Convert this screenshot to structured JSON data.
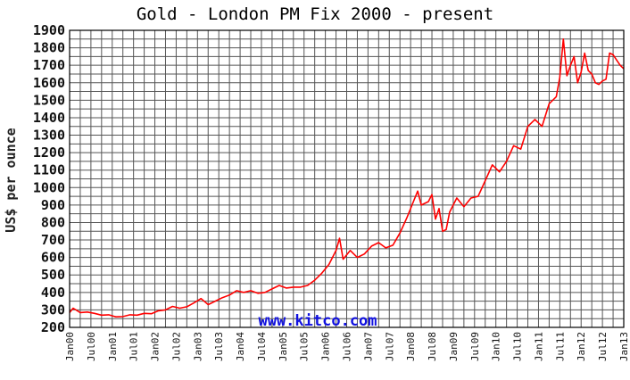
{
  "chart_data": {
    "type": "line",
    "title": "Gold - London PM Fix 2000 - present",
    "ylabel": "US$ per ounce",
    "xlabel": "",
    "watermark": "www.kitco.com",
    "ylim": [
      200,
      1900
    ],
    "yticks": [
      200,
      300,
      400,
      500,
      600,
      700,
      800,
      900,
      1000,
      1100,
      1200,
      1300,
      1400,
      1500,
      1600,
      1700,
      1800,
      1900
    ],
    "xlim": [
      "2000-01",
      "2013-01"
    ],
    "xticks": [
      "Jan00",
      "Jul00",
      "Jan01",
      "Jul01",
      "Jan02",
      "Jul02",
      "Jan03",
      "Jul03",
      "Jan04",
      "Jul04",
      "Jan05",
      "Jul05",
      "Jan06",
      "Jul06",
      "Jan07",
      "Jul07",
      "Jan08",
      "Jul08",
      "Jan09",
      "Jul09",
      "Jan10",
      "Jul10",
      "Jan11",
      "Jul11",
      "Jan12",
      "Jul12",
      "Jan13"
    ],
    "grid": true,
    "line_color": "#ff0000",
    "series": [
      {
        "x": [
          "2000-01",
          "2000-02",
          "2000-04",
          "2000-06",
          "2000-08",
          "2000-10",
          "2000-12",
          "2001-02",
          "2001-04",
          "2001-06",
          "2001-08",
          "2001-10",
          "2001-12",
          "2002-02",
          "2002-04",
          "2002-06",
          "2002-08",
          "2002-10",
          "2002-12",
          "2003-02",
          "2003-04",
          "2003-06",
          "2003-08",
          "2003-10",
          "2003-12",
          "2004-02",
          "2004-04",
          "2004-06",
          "2004-08",
          "2004-10",
          "2004-12",
          "2005-02",
          "2005-04",
          "2005-06",
          "2005-08",
          "2005-10",
          "2005-12",
          "2006-02",
          "2006-04",
          "2006-05",
          "2006-06",
          "2006-08",
          "2006-10",
          "2006-12",
          "2007-02",
          "2007-04",
          "2007-06",
          "2007-08",
          "2007-10",
          "2007-12",
          "2008-02",
          "2008-03",
          "2008-04",
          "2008-06",
          "2008-07",
          "2008-08",
          "2008-09",
          "2008-10",
          "2008-11",
          "2008-12",
          "2009-02",
          "2009-04",
          "2009-06",
          "2009-08",
          "2009-10",
          "2009-12",
          "2010-02",
          "2010-04",
          "2010-06",
          "2010-08",
          "2010-10",
          "2010-12",
          "2011-02",
          "2011-04",
          "2011-06",
          "2011-07",
          "2011-08",
          "2011-09",
          "2011-10",
          "2011-11",
          "2011-12",
          "2012-01",
          "2012-02",
          "2012-03",
          "2012-04",
          "2012-05",
          "2012-06",
          "2012-07",
          "2012-08",
          "2012-09",
          "2012-10",
          "2012-11",
          "2012-12",
          "2013-01"
        ],
        "values": [
          285,
          310,
          285,
          288,
          280,
          270,
          272,
          260,
          262,
          272,
          270,
          280,
          278,
          295,
          300,
          320,
          310,
          318,
          340,
          365,
          330,
          350,
          370,
          385,
          410,
          400,
          410,
          395,
          400,
          420,
          440,
          425,
          430,
          430,
          440,
          470,
          510,
          560,
          640,
          710,
          590,
          640,
          600,
          620,
          665,
          685,
          655,
          670,
          740,
          830,
          930,
          980,
          900,
          920,
          960,
          820,
          880,
          750,
          760,
          860,
          940,
          890,
          940,
          950,
          1040,
          1130,
          1090,
          1150,
          1240,
          1220,
          1350,
          1390,
          1350,
          1480,
          1520,
          1630,
          1850,
          1640,
          1700,
          1750,
          1600,
          1660,
          1770,
          1670,
          1650,
          1600,
          1590,
          1610,
          1620,
          1770,
          1760,
          1730,
          1700,
          1680
        ]
      }
    ]
  }
}
